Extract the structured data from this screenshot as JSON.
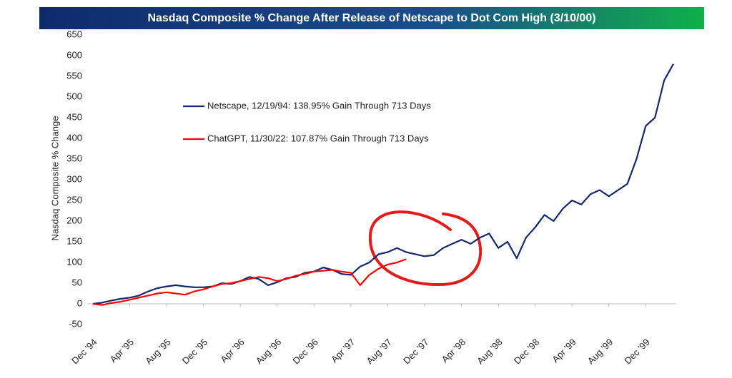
{
  "chart_data": {
    "type": "line",
    "title": "Nasdaq Composite % Change After Release of Netscape to Dot Com High (3/10/00)",
    "ylabel": "Nasdaq Composite % Change",
    "x": [
      "1994-12",
      "1995-01",
      "1995-02",
      "1995-03",
      "1995-04",
      "1995-05",
      "1995-06",
      "1995-07",
      "1995-08",
      "1995-09",
      "1995-10",
      "1995-11",
      "1995-12",
      "1996-01",
      "1996-02",
      "1996-03",
      "1996-04",
      "1996-05",
      "1996-06",
      "1996-07",
      "1996-08",
      "1996-09",
      "1996-10",
      "1996-11",
      "1996-12",
      "1997-01",
      "1997-02",
      "1997-03",
      "1997-04",
      "1997-05",
      "1997-06",
      "1997-07",
      "1997-08",
      "1997-09",
      "1997-10",
      "1997-11",
      "1997-12",
      "1998-01",
      "1998-02",
      "1998-03",
      "1998-04",
      "1998-05",
      "1998-06",
      "1998-07",
      "1998-08",
      "1998-09",
      "1998-10",
      "1998-11",
      "1998-12",
      "1999-01",
      "1999-02",
      "1999-03",
      "1999-04",
      "1999-05",
      "1999-06",
      "1999-07",
      "1999-08",
      "1999-09",
      "1999-10",
      "1999-11",
      "1999-12",
      "2000-01",
      "2000-02",
      "2000-03"
    ],
    "series": [
      {
        "name": "Netscape, 12/19/94: 138.95% Gain Through 713 Days",
        "color": "#14286b",
        "values": [
          0,
          3,
          8,
          12,
          15,
          20,
          30,
          38,
          42,
          45,
          42,
          40,
          40,
          42,
          50,
          48,
          55,
          65,
          60,
          45,
          52,
          62,
          65,
          75,
          78,
          88,
          82,
          72,
          70,
          90,
          100,
          120,
          125,
          135,
          125,
          120,
          115,
          118,
          135,
          145,
          155,
          145,
          160,
          170,
          135,
          150,
          110,
          160,
          185,
          215,
          200,
          230,
          250,
          240,
          265,
          275,
          260,
          275,
          290,
          350,
          430,
          450,
          540,
          580
        ]
      },
      {
        "name": "ChatGPT, 11/30/22: 107.87% Gain Through 713 Days",
        "color": "#ff0000",
        "values": [
          0,
          -3,
          2,
          5,
          10,
          15,
          20,
          25,
          28,
          25,
          22,
          30,
          35,
          42,
          48,
          50,
          55,
          60,
          65,
          62,
          55,
          60,
          68,
          72,
          78,
          80,
          82,
          78,
          75,
          45,
          70,
          85,
          95,
          100,
          108,
          null,
          null,
          null,
          null,
          null,
          null,
          null,
          null,
          null,
          null,
          null,
          null,
          null,
          null,
          null,
          null,
          null,
          null,
          null,
          null,
          null,
          null,
          null,
          null,
          null,
          null,
          null,
          null,
          null
        ]
      }
    ],
    "ylim": [
      -50,
      650
    ],
    "yticks": [
      -50,
      0,
      50,
      100,
      150,
      200,
      250,
      300,
      350,
      400,
      450,
      500,
      550,
      600,
      650
    ],
    "xticks": [
      {
        "value": "1994-12",
        "label": "Dec '94"
      },
      {
        "value": "1995-04",
        "label": "Apr '95"
      },
      {
        "value": "1995-08",
        "label": "Aug '95"
      },
      {
        "value": "1995-12",
        "label": "Dec '95"
      },
      {
        "value": "1996-04",
        "label": "Apr '96"
      },
      {
        "value": "1996-08",
        "label": "Aug '96"
      },
      {
        "value": "1996-12",
        "label": "Dec '96"
      },
      {
        "value": "1997-04",
        "label": "Apr '97"
      },
      {
        "value": "1997-08",
        "label": "Aug '97"
      },
      {
        "value": "1997-12",
        "label": "Dec '97"
      },
      {
        "value": "1998-04",
        "label": "Apr '98"
      },
      {
        "value": "1998-08",
        "label": "Aug '98"
      },
      {
        "value": "1998-12",
        "label": "Dec '98"
      },
      {
        "value": "1999-04",
        "label": "Apr '99"
      },
      {
        "value": "1999-08",
        "label": "Aug '99"
      },
      {
        "value": "1999-12",
        "label": "Dec '99"
      }
    ],
    "grid": false
  }
}
